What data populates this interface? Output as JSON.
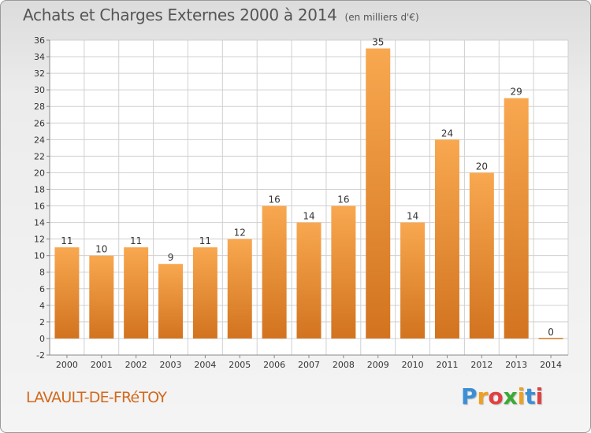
{
  "header": {
    "title": "Achats et Charges Externes 2000 à 2014",
    "unit": "(en milliers d'€)"
  },
  "footer": {
    "town": "LAVAULT-DE-FRéTOY",
    "logo_letters": [
      {
        "char": "P",
        "color": "#3a8fd6"
      },
      {
        "char": "r",
        "color": "#f0a020"
      },
      {
        "char": "o",
        "color": "#e04040"
      },
      {
        "char": "x",
        "color": "#3aaa35"
      },
      {
        "char": "i",
        "color": "#f0a020"
      },
      {
        "char": "t",
        "color": "#3a8fd6"
      },
      {
        "char": "i",
        "color": "#e04040"
      }
    ]
  },
  "chart_data": {
    "type": "bar",
    "categories": [
      "2000",
      "2001",
      "2002",
      "2003",
      "2004",
      "2005",
      "2006",
      "2007",
      "2008",
      "2009",
      "2010",
      "2011",
      "2012",
      "2013",
      "2014"
    ],
    "values": [
      11,
      10,
      11,
      9,
      11,
      12,
      16,
      14,
      16,
      35,
      14,
      24,
      20,
      29,
      0
    ],
    "data_labels": [
      "11",
      "10",
      "11",
      "9",
      "11",
      "12",
      "16",
      "14",
      "16",
      "35",
      "14",
      "24",
      "20",
      "29",
      "0"
    ],
    "ylim": [
      -2,
      36
    ],
    "yticks": [
      -2,
      0,
      2,
      4,
      6,
      8,
      10,
      12,
      14,
      16,
      18,
      20,
      22,
      24,
      26,
      28,
      30,
      32,
      34,
      36
    ],
    "grid": true,
    "colors": {
      "bar_top": "#f8a850",
      "bar_bottom": "#d2731f",
      "grid": "#d0d0d0",
      "axis": "#888888",
      "text": "#333333"
    }
  }
}
